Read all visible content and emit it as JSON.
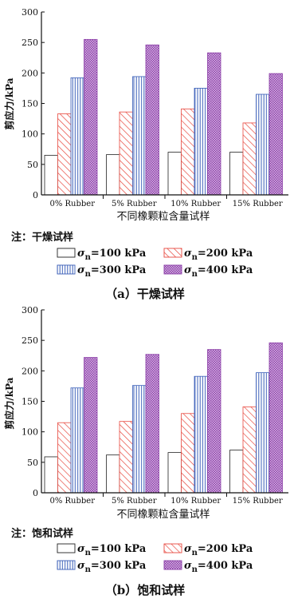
{
  "chart_data": [
    {
      "type": "bar",
      "categories": [
        "0% Rubber",
        "5% Rubber",
        "10% Rubber",
        "15% Rubber"
      ],
      "series": [
        {
          "name": "σn=100 kPa",
          "values": [
            65,
            66,
            70,
            70
          ]
        },
        {
          "name": "σn=200 kPa",
          "values": [
            133,
            136,
            141,
            118
          ]
        },
        {
          "name": "σn=300 kPa",
          "values": [
            192,
            194,
            175,
            165
          ]
        },
        {
          "name": "σn=400 kPa",
          "values": [
            255,
            246,
            233,
            199
          ]
        }
      ],
      "ylabel": "剪应力/kPa",
      "xlabel": "不同橡颗粒含量试样",
      "ylim": [
        0,
        300
      ],
      "yticks": [
        0,
        50,
        100,
        150,
        200,
        250,
        300
      ],
      "note": "注：干燥试样",
      "caption": "（a）干燥试样",
      "grid": false
    },
    {
      "type": "bar",
      "categories": [
        "0% Rubber",
        "5% Rubber",
        "10% Rubber",
        "15% Rubber"
      ],
      "series": [
        {
          "name": "σn=100 kPa",
          "values": [
            59,
            62,
            66,
            70
          ]
        },
        {
          "name": "σn=200 kPa",
          "values": [
            115,
            117,
            130,
            141
          ]
        },
        {
          "name": "σn=300 kPa",
          "values": [
            172,
            176,
            191,
            197
          ]
        },
        {
          "name": "σn=400 kPa",
          "values": [
            222,
            227,
            235,
            246
          ]
        }
      ],
      "ylabel": "剪应力/kPa",
      "xlabel": "不同橡颗粒含量试样",
      "ylim": [
        0,
        300
      ],
      "yticks": [
        0,
        50,
        100,
        150,
        200,
        250,
        300
      ],
      "note": "注：饱和试样",
      "caption": "（b）饱和试样",
      "grid": false
    }
  ],
  "legend": {
    "symbol": "σ",
    "subscript": "n",
    "items": [
      "=100 kPa",
      "=200 kPa",
      "=300 kPa",
      "=400 kPa"
    ]
  },
  "colors": {
    "s1": "#222222",
    "s2": "#e8493f",
    "s3": "#3a5fb8",
    "s4": "#8b3fa7"
  }
}
